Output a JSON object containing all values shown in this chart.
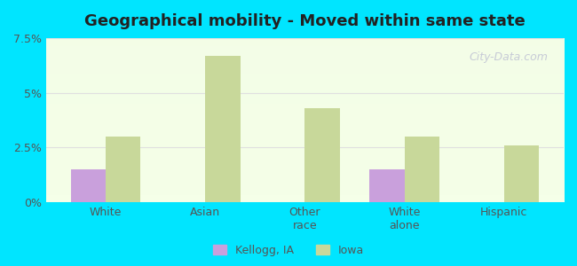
{
  "title": "Geographical mobility - Moved within same state",
  "categories": [
    "White",
    "Asian",
    "Other\nrace",
    "White\nalone",
    "Hispanic"
  ],
  "kellogg_values": [
    1.5,
    0.0,
    0.0,
    1.5,
    0.0
  ],
  "iowa_values": [
    3.0,
    6.7,
    4.3,
    3.0,
    2.6
  ],
  "kellogg_color": "#c9a0dc",
  "iowa_color": "#c8d89a",
  "ylim": [
    0,
    7.5
  ],
  "yticks": [
    0,
    2.5,
    5.0,
    7.5
  ],
  "ytick_labels": [
    "0%",
    "2.5%",
    "5%",
    "7.5%"
  ],
  "background_color": "#00e5ff",
  "plot_bg_gradient_top": "#e8f5e0",
  "plot_bg_gradient_bottom": "#f5ffe8",
  "grid_color": "#e0e0e0",
  "bar_width": 0.35,
  "legend_kellogg": "Kellogg, IA",
  "legend_iowa": "Iowa",
  "watermark": "City-Data.com"
}
